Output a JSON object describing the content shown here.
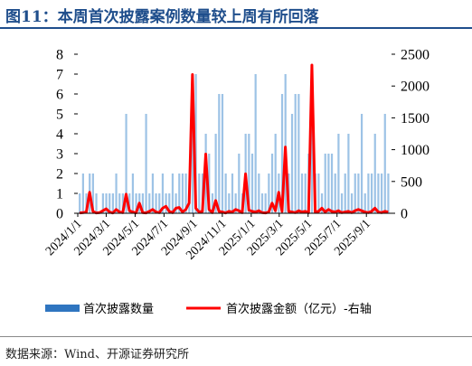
{
  "header": {
    "title": "图11：本周首次披露案例数量较上周有所回落"
  },
  "footer": {
    "source": "数据来源：Wind、开源证券研究所"
  },
  "chart_data": {
    "type": "bar+line",
    "x_tick_labels": [
      "2024/1/1",
      "2024/3/1",
      "2024/5/1",
      "2024/7/1",
      "2024/9/1",
      "2024/11/1",
      "2025/1/1",
      "2025/3/1",
      "2025/5/1",
      "2025/7/1",
      "2025/9/1"
    ],
    "x_range": [
      "2024-01-01",
      "2025-10-24"
    ],
    "y_left": {
      "min": 0,
      "max": 8,
      "ticks": [
        0,
        1,
        2,
        3,
        4,
        5,
        6,
        7,
        8
      ]
    },
    "y_right": {
      "min": 0,
      "max": 2500,
      "ticks": [
        0,
        500,
        1000,
        1500,
        2000,
        2500
      ]
    },
    "grid": false,
    "legend_position": "bottom",
    "series": [
      {
        "name": "首次披露数量",
        "type": "bar",
        "axis": "left",
        "color": "#9dc3e6",
        "points": [
          [
            "2024-01-05",
            1
          ],
          [
            "2024-01-12",
            2
          ],
          [
            "2024-01-19",
            1
          ],
          [
            "2024-01-26",
            2
          ],
          [
            "2024-02-02",
            2
          ],
          [
            "2024-02-09",
            1
          ],
          [
            "2024-02-23",
            1
          ],
          [
            "2024-03-01",
            1
          ],
          [
            "2024-03-08",
            1
          ],
          [
            "2024-03-15",
            1
          ],
          [
            "2024-03-22",
            2
          ],
          [
            "2024-03-29",
            1
          ],
          [
            "2024-04-05",
            1
          ],
          [
            "2024-04-12",
            5
          ],
          [
            "2024-04-19",
            1
          ],
          [
            "2024-04-26",
            2
          ],
          [
            "2024-05-03",
            1
          ],
          [
            "2024-05-10",
            1
          ],
          [
            "2024-05-17",
            1
          ],
          [
            "2024-05-24",
            5
          ],
          [
            "2024-05-31",
            1
          ],
          [
            "2024-06-07",
            2
          ],
          [
            "2024-06-14",
            1
          ],
          [
            "2024-06-21",
            1
          ],
          [
            "2024-06-28",
            2
          ],
          [
            "2024-07-05",
            1
          ],
          [
            "2024-07-12",
            1
          ],
          [
            "2024-07-19",
            2
          ],
          [
            "2024-07-26",
            1
          ],
          [
            "2024-08-02",
            2
          ],
          [
            "2024-08-09",
            2
          ],
          [
            "2024-08-16",
            2
          ],
          [
            "2024-08-23",
            1
          ],
          [
            "2024-08-30",
            6
          ],
          [
            "2024-09-06",
            7
          ],
          [
            "2024-09-13",
            2
          ],
          [
            "2024-09-20",
            2
          ],
          [
            "2024-09-27",
            4
          ],
          [
            "2024-10-04",
            3
          ],
          [
            "2024-10-11",
            1
          ],
          [
            "2024-10-18",
            4
          ],
          [
            "2024-10-25",
            6
          ],
          [
            "2024-11-01",
            6
          ],
          [
            "2024-11-08",
            2
          ],
          [
            "2024-11-15",
            1
          ],
          [
            "2024-11-22",
            2
          ],
          [
            "2024-11-29",
            1
          ],
          [
            "2024-12-06",
            3
          ],
          [
            "2024-12-13",
            1
          ],
          [
            "2024-12-20",
            4
          ],
          [
            "2024-12-27",
            4
          ],
          [
            "2025-01-03",
            3
          ],
          [
            "2025-01-10",
            7
          ],
          [
            "2025-01-17",
            2
          ],
          [
            "2025-01-24",
            1
          ],
          [
            "2025-01-31",
            1
          ],
          [
            "2025-02-07",
            2
          ],
          [
            "2025-02-14",
            3
          ],
          [
            "2025-02-21",
            4
          ],
          [
            "2025-02-28",
            2
          ],
          [
            "2025-03-07",
            6
          ],
          [
            "2025-03-14",
            7
          ],
          [
            "2025-03-21",
            2
          ],
          [
            "2025-03-28",
            5
          ],
          [
            "2025-04-04",
            6
          ],
          [
            "2025-04-11",
            6
          ],
          [
            "2025-04-18",
            2
          ],
          [
            "2025-04-25",
            2
          ],
          [
            "2025-05-02",
            3
          ],
          [
            "2025-05-09",
            7
          ],
          [
            "2025-05-16",
            2
          ],
          [
            "2025-05-23",
            2
          ],
          [
            "2025-05-30",
            1
          ],
          [
            "2025-06-06",
            3
          ],
          [
            "2025-06-13",
            3
          ],
          [
            "2025-06-20",
            3
          ],
          [
            "2025-06-27",
            2
          ],
          [
            "2025-07-04",
            4
          ],
          [
            "2025-07-11",
            1
          ],
          [
            "2025-07-18",
            2
          ],
          [
            "2025-07-25",
            4
          ],
          [
            "2025-08-01",
            1
          ],
          [
            "2025-08-08",
            2
          ],
          [
            "2025-08-15",
            2
          ],
          [
            "2025-08-22",
            5
          ],
          [
            "2025-08-29",
            1
          ],
          [
            "2025-09-05",
            2
          ],
          [
            "2025-09-12",
            2
          ],
          [
            "2025-09-19",
            4
          ],
          [
            "2025-09-26",
            2
          ],
          [
            "2025-10-03",
            2
          ],
          [
            "2025-10-10",
            5
          ],
          [
            "2025-10-17",
            2
          ]
        ]
      },
      {
        "name": "首次披露金额（亿元）-右轴",
        "type": "line",
        "axis": "right",
        "color": "#ff0000",
        "points": [
          [
            "2024-01-05",
            5
          ],
          [
            "2024-01-12",
            10
          ],
          [
            "2024-01-19",
            20
          ],
          [
            "2024-01-26",
            330
          ],
          [
            "2024-02-02",
            30
          ],
          [
            "2024-02-09",
            5
          ],
          [
            "2024-02-16",
            10
          ],
          [
            "2024-02-23",
            40
          ],
          [
            "2024-03-01",
            70
          ],
          [
            "2024-03-08",
            20
          ],
          [
            "2024-03-15",
            5
          ],
          [
            "2024-03-22",
            60
          ],
          [
            "2024-03-29",
            20
          ],
          [
            "2024-04-05",
            10
          ],
          [
            "2024-04-12",
            300
          ],
          [
            "2024-04-19",
            40
          ],
          [
            "2024-04-26",
            20
          ],
          [
            "2024-05-03",
            5
          ],
          [
            "2024-05-10",
            160
          ],
          [
            "2024-05-17",
            10
          ],
          [
            "2024-05-24",
            5
          ],
          [
            "2024-05-31",
            30
          ],
          [
            "2024-06-07",
            60
          ],
          [
            "2024-06-14",
            20
          ],
          [
            "2024-06-21",
            10
          ],
          [
            "2024-06-28",
            80
          ],
          [
            "2024-07-05",
            110
          ],
          [
            "2024-07-12",
            30
          ],
          [
            "2024-07-19",
            10
          ],
          [
            "2024-07-26",
            80
          ],
          [
            "2024-08-02",
            90
          ],
          [
            "2024-08-09",
            20
          ],
          [
            "2024-08-16",
            60
          ],
          [
            "2024-08-23",
            160
          ],
          [
            "2024-08-30",
            2180
          ],
          [
            "2024-09-06",
            80
          ],
          [
            "2024-09-13",
            20
          ],
          [
            "2024-09-20",
            30
          ],
          [
            "2024-09-27",
            930
          ],
          [
            "2024-10-04",
            60
          ],
          [
            "2024-10-11",
            10
          ],
          [
            "2024-10-18",
            200
          ],
          [
            "2024-10-25",
            30
          ],
          [
            "2024-11-01",
            20
          ],
          [
            "2024-11-08",
            5
          ],
          [
            "2024-11-15",
            30
          ],
          [
            "2024-11-22",
            20
          ],
          [
            "2024-11-29",
            60
          ],
          [
            "2024-12-06",
            40
          ],
          [
            "2024-12-13",
            10
          ],
          [
            "2024-12-20",
            620
          ],
          [
            "2024-12-27",
            50
          ],
          [
            "2025-01-03",
            30
          ],
          [
            "2025-01-10",
            20
          ],
          [
            "2025-01-17",
            40
          ],
          [
            "2025-01-24",
            10
          ],
          [
            "2025-01-31",
            5
          ],
          [
            "2025-02-07",
            20
          ],
          [
            "2025-02-14",
            160
          ],
          [
            "2025-02-21",
            40
          ],
          [
            "2025-02-28",
            330
          ],
          [
            "2025-03-07",
            30
          ],
          [
            "2025-03-14",
            1040
          ],
          [
            "2025-03-21",
            30
          ],
          [
            "2025-03-28",
            20
          ],
          [
            "2025-04-04",
            10
          ],
          [
            "2025-04-11",
            40
          ],
          [
            "2025-04-18",
            20
          ],
          [
            "2025-04-25",
            30
          ],
          [
            "2025-05-02",
            10
          ],
          [
            "2025-05-09",
            2330
          ],
          [
            "2025-05-16",
            20
          ],
          [
            "2025-05-23",
            30
          ],
          [
            "2025-05-30",
            80
          ],
          [
            "2025-06-06",
            20
          ],
          [
            "2025-06-13",
            60
          ],
          [
            "2025-06-20",
            30
          ],
          [
            "2025-06-27",
            20
          ],
          [
            "2025-07-04",
            40
          ],
          [
            "2025-07-11",
            10
          ],
          [
            "2025-07-18",
            20
          ],
          [
            "2025-07-25",
            30
          ],
          [
            "2025-08-01",
            10
          ],
          [
            "2025-08-08",
            40
          ],
          [
            "2025-08-15",
            60
          ],
          [
            "2025-08-22",
            40
          ],
          [
            "2025-08-29",
            20
          ],
          [
            "2025-09-05",
            10
          ],
          [
            "2025-09-12",
            30
          ],
          [
            "2025-09-19",
            80
          ],
          [
            "2025-09-26",
            20
          ],
          [
            "2025-10-03",
            10
          ],
          [
            "2025-10-10",
            30
          ],
          [
            "2025-10-17",
            20
          ]
        ]
      }
    ]
  }
}
